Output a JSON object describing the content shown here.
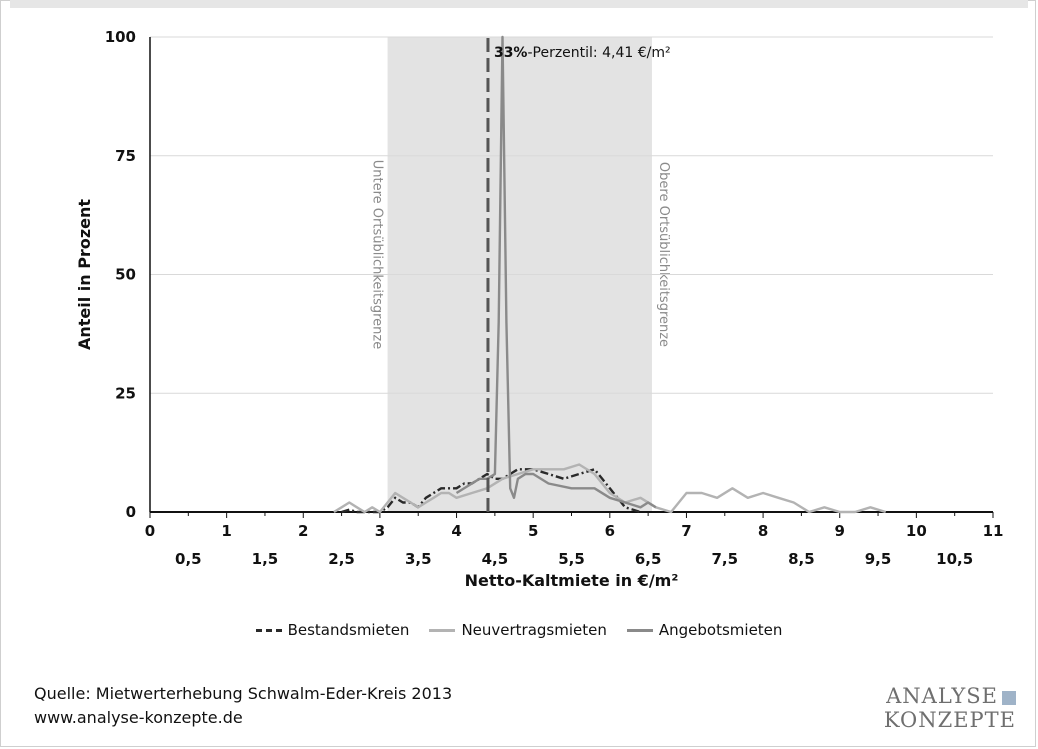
{
  "chart_data": {
    "type": "line",
    "xlabel": "Netto-Kaltmiete in €/m²",
    "ylabel": "Anteil in Prozent",
    "xlim": [
      0,
      11
    ],
    "ylim": [
      0,
      100
    ],
    "x_major_ticks": [
      "0",
      "1",
      "2",
      "3",
      "4",
      "5",
      "6",
      "7",
      "8",
      "9",
      "10",
      "11"
    ],
    "x_minor_ticks": [
      "0,5",
      "1,5",
      "2,5",
      "3,5",
      "4,5",
      "5,5",
      "6,5",
      "7,5",
      "8,5",
      "9,5",
      "10,5"
    ],
    "y_ticks": [
      "0",
      "25",
      "50",
      "75",
      "100"
    ],
    "grid": "horizontal",
    "bands": [
      {
        "from": 3.1,
        "to": 6.55,
        "color": "#e3e3e3",
        "label_left": "Untere Ortsüblichkeitsgrenze",
        "label_right": "Obere Ortsüblichkeitsgrenze"
      }
    ],
    "annotation": {
      "x": 4.41,
      "label_bold": "33%",
      "label_rest": "-Perzentil: 4,41 €/m²"
    },
    "series": [
      {
        "name": "Bestandsmieten",
        "color": "#2a2a2a",
        "dash": "8,3,2,3",
        "x": [
          2.5,
          2.6,
          2.7,
          2.8,
          2.9,
          3.0,
          3.1,
          3.2,
          3.3,
          3.4,
          3.5,
          3.6,
          3.7,
          3.8,
          3.9,
          4.0,
          4.1,
          4.2,
          4.3,
          4.4,
          4.5,
          4.6,
          4.7,
          4.8,
          4.9,
          5.0,
          5.2,
          5.4,
          5.6,
          5.8,
          5.9,
          6.0,
          6.1,
          6.2,
          6.4
        ],
        "y": [
          0,
          0.5,
          0,
          0,
          0,
          0,
          1,
          3,
          2,
          2,
          1,
          3,
          4,
          5,
          5,
          5,
          6,
          6,
          7,
          8,
          7,
          7,
          8,
          9,
          9,
          9,
          8,
          7,
          8,
          9,
          7,
          5,
          3,
          1,
          0
        ]
      },
      {
        "name": "Neuvertragsmieten",
        "color": "#b3b3b3",
        "dash": "",
        "x": [
          2.4,
          2.5,
          2.6,
          2.7,
          2.8,
          2.9,
          3.0,
          3.1,
          3.2,
          3.3,
          3.4,
          3.5,
          3.6,
          3.7,
          3.8,
          3.9,
          4.0,
          4.2,
          4.4,
          4.6,
          4.8,
          5.0,
          5.2,
          5.4,
          5.6,
          5.8,
          6.0,
          6.2,
          6.4,
          6.6,
          6.8,
          7.0,
          7.2,
          7.4,
          7.6,
          7.8,
          8.0,
          8.2,
          8.4,
          8.6,
          8.8,
          9.0,
          9.2,
          9.4,
          9.6
        ],
        "y": [
          0,
          1,
          2,
          1,
          0,
          1,
          0,
          2,
          4,
          3,
          2,
          1,
          2,
          3,
          4,
          4,
          3,
          4,
          5,
          7,
          8,
          9,
          9,
          9,
          10,
          8,
          4,
          2,
          3,
          1,
          0,
          4,
          4,
          3,
          5,
          3,
          4,
          3,
          2,
          0,
          1,
          0,
          0,
          1,
          0
        ]
      },
      {
        "name": "Angebotsmieten",
        "color": "#8a8a8a",
        "dash": "",
        "x": [
          4.0,
          4.2,
          4.3,
          4.4,
          4.5,
          4.55,
          4.6,
          4.65,
          4.7,
          4.75,
          4.8,
          4.9,
          5.0,
          5.2,
          5.5,
          5.8,
          6.0,
          6.2,
          6.4,
          6.5,
          6.6
        ],
        "y": [
          4,
          6,
          7,
          7,
          8,
          40,
          100,
          40,
          5,
          3,
          7,
          8,
          8,
          6,
          5,
          5,
          3,
          2,
          1,
          2,
          1
        ]
      }
    ],
    "reference_line": {
      "x": 4.41,
      "y_top": 100,
      "color": "#555555",
      "dash": "14,6"
    }
  },
  "legend": {
    "items": [
      {
        "label": "Bestandsmieten",
        "color": "#2a2a2a",
        "style": "dashdot"
      },
      {
        "label": "Neuvertragsmieten",
        "color": "#b3b3b3",
        "style": "solid"
      },
      {
        "label": "Angebotsmieten",
        "color": "#8a8a8a",
        "style": "solid"
      }
    ]
  },
  "footer": {
    "source_line1": "Quelle: Mietwerterhebung Schwalm-Eder-Kreis 2013",
    "source_line2": "www.analyse-konzepte.de",
    "logo_line1": "ANALYSE",
    "logo_line2": "KONZEPTE"
  }
}
